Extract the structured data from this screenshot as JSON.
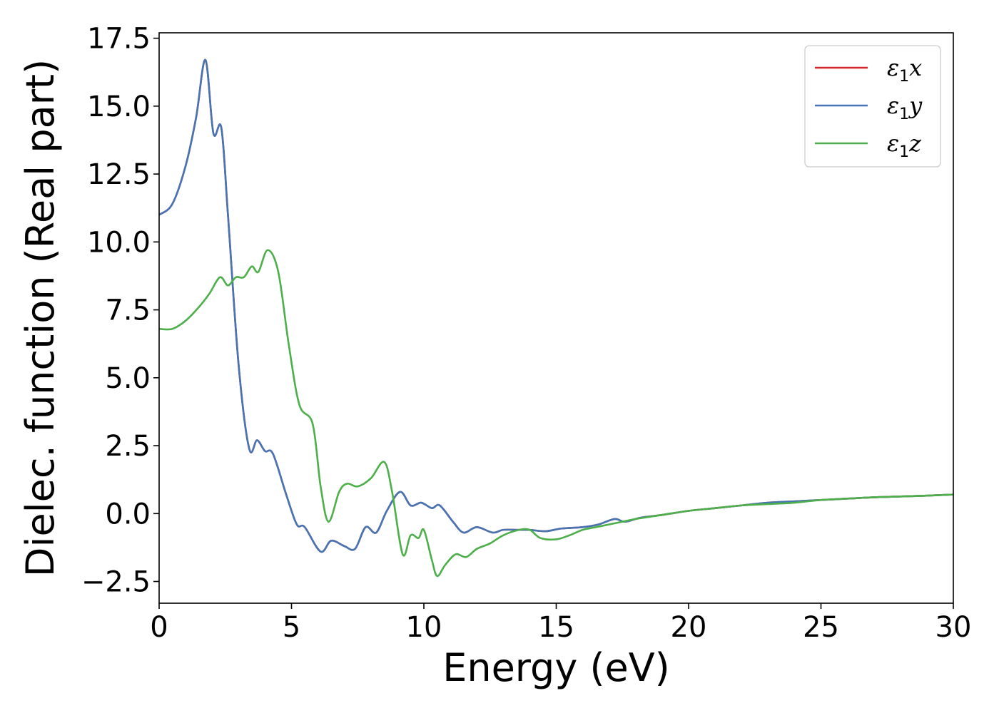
{
  "chart_data": {
    "type": "line",
    "title": "",
    "xlabel": "Energy (eV)",
    "ylabel": "Dielec. function (Real part)",
    "xlim": [
      0,
      30
    ],
    "ylim": [
      -3.3,
      17.7
    ],
    "xticks": [
      0,
      5,
      10,
      15,
      20,
      25,
      30
    ],
    "xtick_labels": [
      "0",
      "5",
      "10",
      "15",
      "20",
      "25",
      "30"
    ],
    "yticks": [
      -2.5,
      0.0,
      2.5,
      5.0,
      7.5,
      10.0,
      12.5,
      15.0,
      17.5
    ],
    "ytick_labels": [
      "−2.5",
      "0.0",
      "2.5",
      "5.0",
      "7.5",
      "10.0",
      "12.5",
      "15.0",
      "17.5"
    ],
    "grid": false,
    "legend_position": "top-right",
    "series": [
      {
        "name": "ε1x",
        "legend_symbol": "ε",
        "legend_sub": "1",
        "legend_var": "x",
        "color": "#d62728",
        "x": [
          0,
          0.5,
          1.0,
          1.4,
          1.75,
          2.05,
          2.35,
          2.6,
          3.0,
          3.4,
          3.7,
          4.0,
          4.3,
          4.8,
          5.2,
          5.5,
          6.1,
          6.5,
          7.0,
          7.4,
          7.8,
          8.2,
          8.6,
          9.1,
          9.5,
          9.9,
          10.3,
          10.6,
          11.1,
          11.5,
          12.0,
          12.6,
          13.0,
          13.6,
          14.0,
          14.6,
          15.2,
          16.0,
          16.6,
          17.2,
          17.6,
          18.2,
          19.0,
          20.0,
          21.0,
          22.0,
          23.0,
          24.0,
          25.0,
          26.0,
          27.0,
          28.0,
          29.0,
          30.0
        ],
        "values": [
          11.0,
          11.4,
          12.8,
          14.6,
          16.7,
          14.0,
          14.2,
          11.0,
          5.5,
          2.4,
          2.7,
          2.3,
          2.2,
          0.7,
          -0.4,
          -0.5,
          -1.4,
          -1.0,
          -1.2,
          -1.3,
          -0.5,
          -0.7,
          0.1,
          0.8,
          0.3,
          0.4,
          0.2,
          0.3,
          -0.3,
          -0.7,
          -0.5,
          -0.7,
          -0.6,
          -0.6,
          -0.6,
          -0.65,
          -0.55,
          -0.5,
          -0.4,
          -0.2,
          -0.3,
          -0.15,
          -0.05,
          0.1,
          0.2,
          0.3,
          0.4,
          0.45,
          0.5,
          0.55,
          0.6,
          0.63,
          0.66,
          0.7
        ]
      },
      {
        "name": "ε1y",
        "legend_symbol": "ε",
        "legend_sub": "1",
        "legend_var": "y",
        "color": "#4575b4",
        "x": [
          0,
          0.5,
          1.0,
          1.4,
          1.75,
          2.05,
          2.35,
          2.6,
          3.0,
          3.4,
          3.7,
          4.0,
          4.3,
          4.8,
          5.2,
          5.5,
          6.1,
          6.5,
          7.0,
          7.4,
          7.8,
          8.2,
          8.6,
          9.1,
          9.5,
          9.9,
          10.3,
          10.6,
          11.1,
          11.5,
          12.0,
          12.6,
          13.0,
          13.6,
          14.0,
          14.6,
          15.2,
          16.0,
          16.6,
          17.2,
          17.6,
          18.2,
          19.0,
          20.0,
          21.0,
          22.0,
          23.0,
          24.0,
          25.0,
          26.0,
          27.0,
          28.0,
          29.0,
          30.0
        ],
        "values": [
          11.0,
          11.4,
          12.8,
          14.6,
          16.7,
          14.0,
          14.2,
          11.0,
          5.5,
          2.4,
          2.7,
          2.3,
          2.2,
          0.7,
          -0.4,
          -0.5,
          -1.4,
          -1.0,
          -1.2,
          -1.3,
          -0.5,
          -0.7,
          0.1,
          0.8,
          0.3,
          0.4,
          0.2,
          0.3,
          -0.3,
          -0.7,
          -0.5,
          -0.7,
          -0.6,
          -0.6,
          -0.6,
          -0.65,
          -0.55,
          -0.5,
          -0.4,
          -0.2,
          -0.3,
          -0.15,
          -0.05,
          0.1,
          0.2,
          0.3,
          0.4,
          0.45,
          0.5,
          0.55,
          0.6,
          0.63,
          0.66,
          0.7
        ]
      },
      {
        "name": "ε1z",
        "legend_symbol": "ε",
        "legend_sub": "1",
        "legend_var": "z",
        "color": "#4daf4a",
        "x": [
          0,
          0.5,
          1.0,
          1.5,
          1.9,
          2.3,
          2.6,
          2.9,
          3.2,
          3.5,
          3.75,
          4.1,
          4.5,
          4.9,
          5.3,
          5.8,
          6.1,
          6.4,
          6.8,
          7.1,
          7.5,
          8.0,
          8.5,
          8.8,
          9.2,
          9.5,
          9.8,
          10.0,
          10.3,
          10.5,
          10.8,
          11.2,
          11.6,
          12.0,
          12.5,
          13.0,
          13.6,
          14.0,
          14.4,
          15.0,
          15.5,
          16.0,
          16.5,
          17.0,
          17.5,
          18.0,
          19.0,
          20.0,
          21.0,
          22.0,
          23.0,
          24.0,
          25.0,
          26.0,
          27.0,
          28.0,
          29.0,
          30.0
        ],
        "values": [
          6.8,
          6.8,
          7.1,
          7.6,
          8.1,
          8.7,
          8.4,
          8.7,
          8.7,
          9.1,
          8.9,
          9.7,
          8.9,
          6.2,
          4.0,
          3.3,
          1.0,
          -0.3,
          0.8,
          1.1,
          1.0,
          1.3,
          1.9,
          0.8,
          -1.5,
          -0.8,
          -0.9,
          -0.6,
          -1.7,
          -2.3,
          -1.9,
          -1.5,
          -1.6,
          -1.3,
          -1.1,
          -0.8,
          -0.6,
          -0.6,
          -0.9,
          -0.95,
          -0.8,
          -0.6,
          -0.5,
          -0.4,
          -0.3,
          -0.2,
          -0.05,
          0.1,
          0.2,
          0.3,
          0.35,
          0.4,
          0.5,
          0.55,
          0.6,
          0.63,
          0.66,
          0.7
        ]
      }
    ]
  }
}
